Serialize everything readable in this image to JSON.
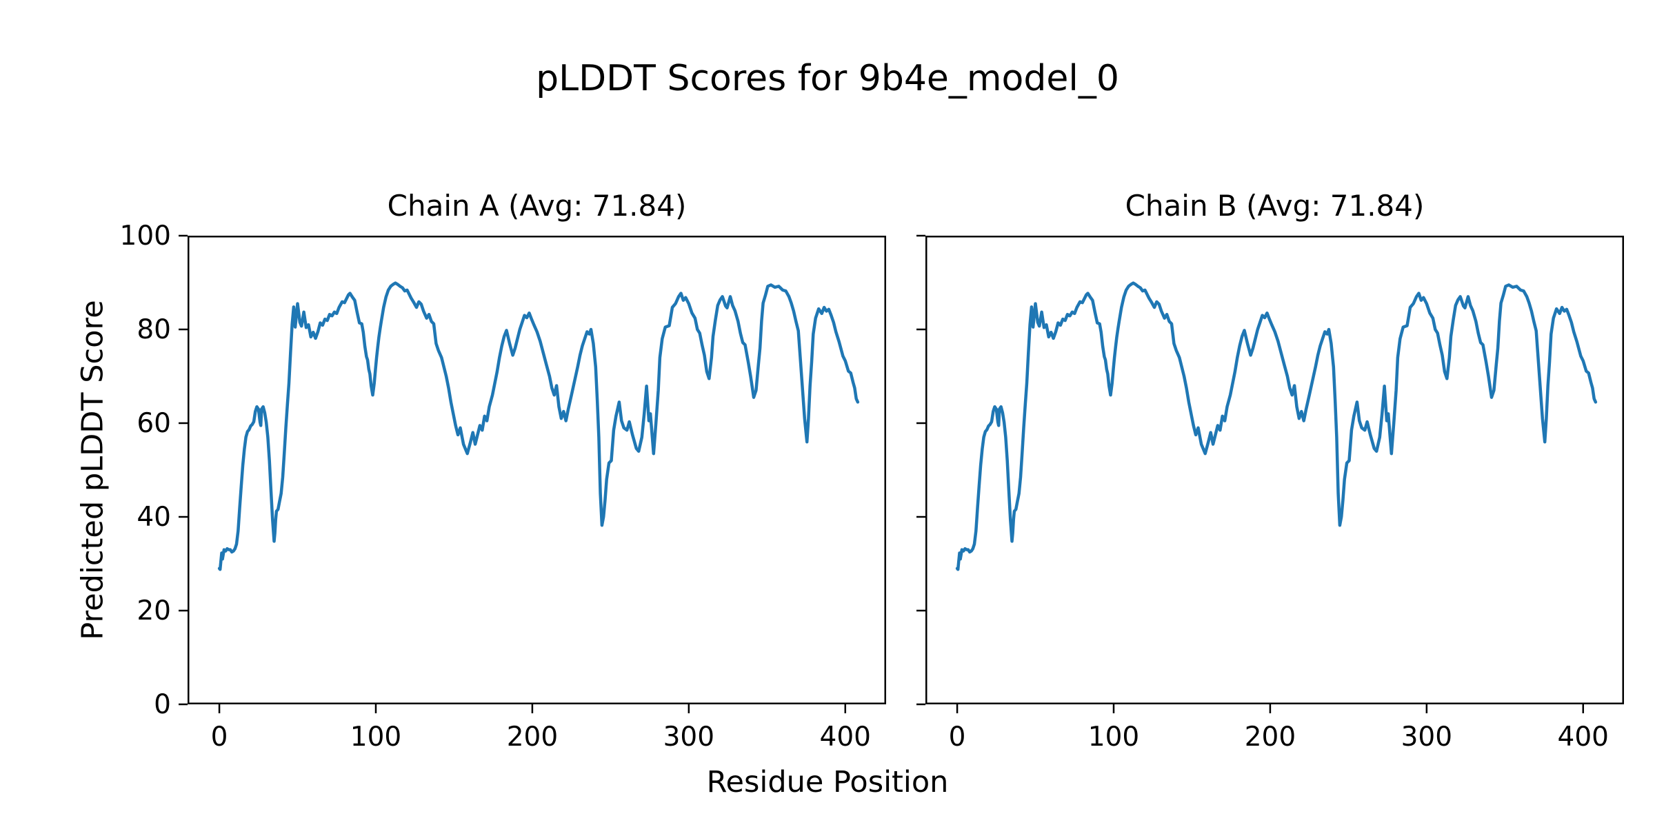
{
  "chart_data": {
    "type": "line",
    "suptitle": "pLDDT Scores for 9b4e_model_0",
    "xlabel": "Residue Position",
    "ylabel": "Predicted pLDDT Score",
    "x_ticks": [
      0,
      100,
      200,
      300,
      400
    ],
    "y_ticks": [
      0,
      20,
      40,
      60,
      80,
      100
    ],
    "xlim": [
      -20.3,
      426.1
    ],
    "ylim": [
      0,
      100
    ],
    "grid": false,
    "legend": "none",
    "line_color": "#1f77b4",
    "axis_color": "#000000",
    "background_color": "#ffffff",
    "subplots": [
      {
        "chain": "A",
        "title": "Chain A (Avg: 71.84)",
        "avg": 71.84,
        "show_y_tick_labels": true
      },
      {
        "chain": "B",
        "title": "Chain B (Avg: 71.84)",
        "avg": 71.84,
        "show_y_tick_labels": false
      }
    ],
    "series_note": "Both chains plot the identical pLDDT-vs-residue trace",
    "shared_series": {
      "name": "pLDDT",
      "points": [
        [
          0,
          29
        ],
        [
          0.5,
          28.8
        ],
        [
          1,
          30.5
        ],
        [
          1.5,
          32.3
        ],
        [
          2,
          31
        ],
        [
          3,
          33
        ],
        [
          4,
          32.7
        ],
        [
          5,
          33.2
        ],
        [
          6,
          33
        ],
        [
          7,
          33
        ],
        [
          8,
          32.5
        ],
        [
          9,
          32.7
        ],
        [
          10,
          33.2
        ],
        [
          11,
          34.2
        ],
        [
          12,
          37
        ],
        [
          13,
          42
        ],
        [
          14,
          46.5
        ],
        [
          15,
          51
        ],
        [
          16,
          54.5
        ],
        [
          17,
          57
        ],
        [
          18,
          58.2
        ],
        [
          19,
          58.6
        ],
        [
          20,
          59.4
        ],
        [
          21,
          59.7
        ],
        [
          22,
          60.3
        ],
        [
          23,
          62.5
        ],
        [
          24,
          63.5
        ],
        [
          25,
          63
        ],
        [
          26,
          60.2
        ],
        [
          26.5,
          59.5
        ],
        [
          27,
          63
        ],
        [
          28,
          63.5
        ],
        [
          29,
          62.2
        ],
        [
          30,
          60.2
        ],
        [
          31,
          57
        ],
        [
          32,
          52
        ],
        [
          33,
          45.5
        ],
        [
          34,
          39.5
        ],
        [
          35,
          34.8
        ],
        [
          35.5,
          36.5
        ],
        [
          36,
          39.5
        ],
        [
          36.5,
          41.2
        ],
        [
          37.5,
          41.6
        ],
        [
          38.5,
          43.3
        ],
        [
          39.5,
          45
        ],
        [
          40.5,
          48.5
        ],
        [
          41.5,
          53.5
        ],
        [
          42.5,
          59
        ],
        [
          43.5,
          64
        ],
        [
          44.5,
          68.5
        ],
        [
          45.5,
          75
        ],
        [
          46.5,
          81
        ],
        [
          47.5,
          84.8
        ],
        [
          48.5,
          80.5
        ],
        [
          50,
          85.5
        ],
        [
          51.5,
          81.5
        ],
        [
          52.5,
          80.7
        ],
        [
          54,
          83.7
        ],
        [
          55.5,
          80.4
        ],
        [
          57,
          81
        ],
        [
          58.5,
          78.4
        ],
        [
          60,
          79.4
        ],
        [
          61.5,
          78.1
        ],
        [
          63,
          79.5
        ],
        [
          64.5,
          81.4
        ],
        [
          66,
          80.9
        ],
        [
          67.5,
          82.2
        ],
        [
          69,
          81.9
        ],
        [
          70.5,
          83.2
        ],
        [
          72,
          82.9
        ],
        [
          73.5,
          83.7
        ],
        [
          75,
          83.4
        ],
        [
          76.5,
          84.7
        ],
        [
          78.5,
          85.9
        ],
        [
          80,
          85.7
        ],
        [
          81.5,
          86.7
        ],
        [
          82.5,
          87.4
        ],
        [
          83.5,
          87.7
        ],
        [
          85,
          86.9
        ],
        [
          86.5,
          86.2
        ],
        [
          88,
          83.7
        ],
        [
          89.5,
          81.4
        ],
        [
          91,
          81.2
        ],
        [
          92,
          79.4
        ],
        [
          93,
          76.4
        ],
        [
          94,
          74.2
        ],
        [
          94.7,
          73.5
        ],
        [
          95.5,
          71.5
        ],
        [
          96.2,
          70.5
        ],
        [
          97,
          68
        ],
        [
          98,
          66
        ],
        [
          99,
          68.5
        ],
        [
          99.8,
          71.5
        ],
        [
          100.5,
          74
        ],
        [
          101.3,
          76.4
        ],
        [
          102,
          78.4
        ],
        [
          102.8,
          80.2
        ],
        [
          103.5,
          81.7
        ],
        [
          105,
          84.7
        ],
        [
          106.5,
          86.9
        ],
        [
          108,
          88.4
        ],
        [
          109.5,
          89.2
        ],
        [
          111,
          89.6
        ],
        [
          112.5,
          89.9
        ],
        [
          114,
          89.6
        ],
        [
          115.5,
          89.2
        ],
        [
          117,
          88.9
        ],
        [
          118.5,
          88.2
        ],
        [
          120,
          88.4
        ],
        [
          121.5,
          87.4
        ],
        [
          122.5,
          86.7
        ],
        [
          124,
          85.9
        ],
        [
          126,
          84.7
        ],
        [
          127.5,
          85.9
        ],
        [
          129,
          85.4
        ],
        [
          130.5,
          83.9
        ],
        [
          132.5,
          82.4
        ],
        [
          134,
          83.2
        ],
        [
          135.5,
          81.7
        ],
        [
          137,
          81.2
        ],
        [
          138.5,
          77
        ],
        [
          140,
          75.5
        ],
        [
          142,
          74
        ],
        [
          143.5,
          72
        ],
        [
          145,
          70
        ],
        [
          146.5,
          67.5
        ],
        [
          148,
          64.5
        ],
        [
          149.5,
          62
        ],
        [
          151,
          59.5
        ],
        [
          152.5,
          57.5
        ],
        [
          154,
          59
        ],
        [
          156,
          55.5
        ],
        [
          158.5,
          53.5
        ],
        [
          160.5,
          56
        ],
        [
          162,
          58
        ],
        [
          163.5,
          55.5
        ],
        [
          165,
          57.5
        ],
        [
          166.5,
          59.5
        ],
        [
          168,
          58.5
        ],
        [
          169.5,
          61.5
        ],
        [
          171,
          60.5
        ],
        [
          172.5,
          63.5
        ],
        [
          174.5,
          66
        ],
        [
          176,
          68.5
        ],
        [
          177.5,
          71
        ],
        [
          179,
          74
        ],
        [
          180.5,
          76.5
        ],
        [
          182,
          78.5
        ],
        [
          183.5,
          79.8
        ],
        [
          185.5,
          77
        ],
        [
          187.5,
          74.5
        ],
        [
          189,
          76
        ],
        [
          190.5,
          78
        ],
        [
          192,
          80
        ],
        [
          193.5,
          81.5
        ],
        [
          195,
          83
        ],
        [
          196.5,
          82.5
        ],
        [
          198,
          83.5
        ],
        [
          199.5,
          82.2
        ],
        [
          201,
          81
        ],
        [
          203,
          79.5
        ],
        [
          205,
          77.5
        ],
        [
          207,
          75
        ],
        [
          209,
          72.5
        ],
        [
          211,
          70
        ],
        [
          212.5,
          67.5
        ],
        [
          214,
          66
        ],
        [
          215.5,
          68
        ],
        [
          217,
          63.5
        ],
        [
          218.5,
          61
        ],
        [
          220,
          62.5
        ],
        [
          221.5,
          60.5
        ],
        [
          223,
          63
        ],
        [
          225,
          66
        ],
        [
          227,
          69
        ],
        [
          229,
          72
        ],
        [
          230.5,
          74.5
        ],
        [
          232,
          76.5
        ],
        [
          233.5,
          78
        ],
        [
          235,
          79.5
        ],
        [
          236.5,
          79
        ],
        [
          237.5,
          80
        ],
        [
          239,
          77
        ],
        [
          240.5,
          72
        ],
        [
          241.5,
          65
        ],
        [
          242.5,
          57
        ],
        [
          243.5,
          45
        ],
        [
          244.5,
          38.2
        ],
        [
          245.5,
          40
        ],
        [
          246.5,
          43.5
        ],
        [
          247.5,
          48
        ],
        [
          249,
          51.5
        ],
        [
          250.5,
          52
        ],
        [
          252,
          58.5
        ],
        [
          253.5,
          61.5
        ],
        [
          255.5,
          64.5
        ],
        [
          257,
          60.5
        ],
        [
          258.5,
          59
        ],
        [
          260.5,
          58.5
        ],
        [
          262,
          60.3
        ],
        [
          264,
          57.5
        ],
        [
          266.5,
          54.6
        ],
        [
          268,
          54
        ],
        [
          270,
          57
        ],
        [
          271.5,
          62
        ],
        [
          273,
          67.9
        ],
        [
          274.5,
          60.5
        ],
        [
          275.5,
          62
        ],
        [
          277.5,
          53.5
        ],
        [
          279,
          60
        ],
        [
          280.5,
          67
        ],
        [
          281.5,
          74
        ],
        [
          283,
          78
        ],
        [
          285,
          80.5
        ],
        [
          287.5,
          80.8
        ],
        [
          289.5,
          84.7
        ],
        [
          291.5,
          85.5
        ],
        [
          293.5,
          87
        ],
        [
          295,
          87.7
        ],
        [
          296.5,
          86.2
        ],
        [
          298,
          86.8
        ],
        [
          300,
          85.5
        ],
        [
          302,
          83.5
        ],
        [
          304,
          82.4
        ],
        [
          305.5,
          80
        ],
        [
          307,
          79.2
        ],
        [
          308.5,
          76.7
        ],
        [
          310,
          74.5
        ],
        [
          311.5,
          71
        ],
        [
          313,
          69.5
        ],
        [
          314.5,
          74
        ],
        [
          315.5,
          78.5
        ],
        [
          317,
          82
        ],
        [
          318.5,
          85.1
        ],
        [
          320,
          86.3
        ],
        [
          321.5,
          87
        ],
        [
          323.5,
          85
        ],
        [
          324.5,
          84.6
        ],
        [
          326.5,
          87
        ],
        [
          328,
          85.1
        ],
        [
          329.5,
          84
        ],
        [
          331.5,
          81.7
        ],
        [
          333,
          79.2
        ],
        [
          334.5,
          77.2
        ],
        [
          336,
          76.7
        ],
        [
          338,
          73
        ],
        [
          339.5,
          70
        ],
        [
          341.5,
          65.5
        ],
        [
          343,
          67
        ],
        [
          344.5,
          72.5
        ],
        [
          345.5,
          76
        ],
        [
          346.5,
          81.8
        ],
        [
          347.5,
          85.6
        ],
        [
          349,
          87.3
        ],
        [
          350.5,
          89.2
        ],
        [
          352.5,
          89.5
        ],
        [
          355,
          89
        ],
        [
          357.5,
          89.2
        ],
        [
          360,
          88.4
        ],
        [
          362,
          88.2
        ],
        [
          364,
          87
        ],
        [
          365.5,
          85.6
        ],
        [
          367,
          83.9
        ],
        [
          368.5,
          81.7
        ],
        [
          370,
          79.7
        ],
        [
          371,
          75
        ],
        [
          372.5,
          68
        ],
        [
          374,
          61
        ],
        [
          375.5,
          56
        ],
        [
          376.5,
          61
        ],
        [
          377.5,
          68
        ],
        [
          378.5,
          73
        ],
        [
          379.5,
          79
        ],
        [
          381,
          82.4
        ],
        [
          383,
          84.4
        ],
        [
          385,
          83.4
        ],
        [
          386.5,
          84.7
        ],
        [
          388,
          83.9
        ],
        [
          389.5,
          84.3
        ],
        [
          391,
          83
        ],
        [
          392.5,
          81.5
        ],
        [
          394,
          79.5
        ],
        [
          396,
          77.4
        ],
        [
          398.5,
          74.3
        ],
        [
          400,
          73.3
        ],
        [
          402,
          71.1
        ],
        [
          403.5,
          70.7
        ],
        [
          405,
          68.7
        ],
        [
          406,
          67.5
        ],
        [
          407,
          65.2
        ],
        [
          408,
          64.5
        ]
      ]
    }
  }
}
